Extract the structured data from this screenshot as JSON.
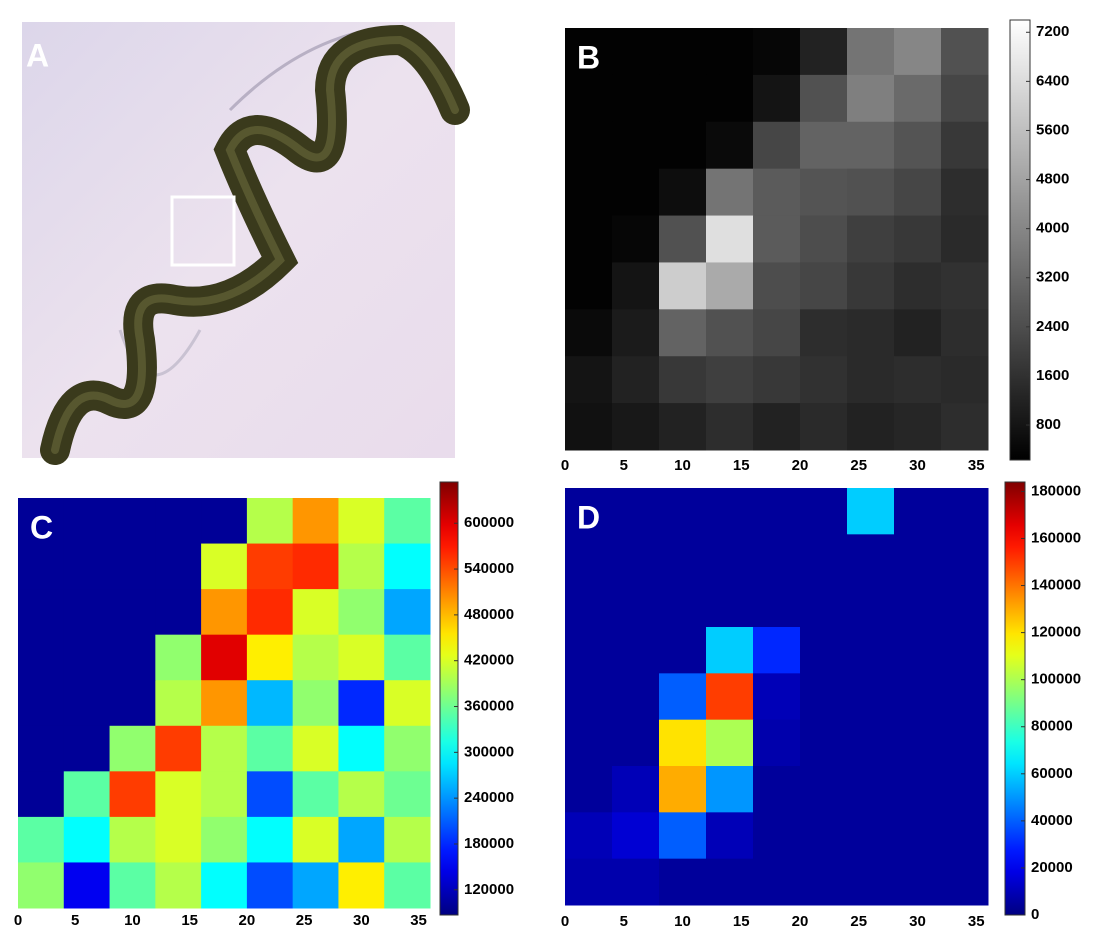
{
  "chart_data": [
    {
      "type": "image",
      "label": "A"
    },
    {
      "type": "heatmap",
      "label": "B",
      "colormap": "gray",
      "xlim": [
        0,
        36
      ],
      "xticks": [
        0,
        5,
        10,
        15,
        20,
        25,
        30,
        35
      ],
      "zlim": [
        230,
        7400
      ],
      "zticks": [
        800,
        1600,
        2400,
        3200,
        4000,
        4800,
        5600,
        6400,
        7200
      ],
      "values": [
        [
          300,
          300,
          300,
          300,
          400,
          1200,
          3500,
          4000,
          2500
        ],
        [
          300,
          300,
          300,
          300,
          800,
          2500,
          3800,
          3200,
          2200
        ],
        [
          300,
          300,
          300,
          500,
          2200,
          3000,
          3000,
          2600,
          1800
        ],
        [
          300,
          300,
          600,
          3500,
          2800,
          2600,
          2500,
          2200,
          1500
        ],
        [
          300,
          400,
          2500,
          6500,
          2800,
          2400,
          2000,
          1800,
          1400
        ],
        [
          300,
          800,
          6000,
          5000,
          2400,
          2200,
          1800,
          1500,
          1600
        ],
        [
          500,
          1000,
          3000,
          2500,
          2200,
          1500,
          1400,
          1200,
          1500
        ],
        [
          800,
          1200,
          1800,
          2000,
          1800,
          1600,
          1400,
          1500,
          1400
        ],
        [
          700,
          900,
          1200,
          1500,
          1200,
          1400,
          1200,
          1300,
          1500
        ]
      ]
    },
    {
      "type": "heatmap",
      "label": "C",
      "colormap": "jet",
      "xlim": [
        0,
        36
      ],
      "xticks": [
        0,
        5,
        10,
        15,
        20,
        25,
        30,
        35
      ],
      "zlim": [
        87000,
        654000
      ],
      "zticks": [
        120000,
        180000,
        240000,
        300000,
        360000,
        420000,
        480000,
        540000,
        600000
      ],
      "values": [
        [
          100000,
          100000,
          100000,
          100000,
          100000,
          400000,
          500000,
          420000,
          350000
        ],
        [
          100000,
          100000,
          100000,
          100000,
          420000,
          550000,
          560000,
          400000,
          300000
        ],
        [
          100000,
          100000,
          100000,
          100000,
          500000,
          560000,
          420000,
          380000,
          250000
        ],
        [
          100000,
          100000,
          100000,
          380000,
          600000,
          450000,
          400000,
          420000,
          350000
        ],
        [
          100000,
          100000,
          100000,
          400000,
          500000,
          260000,
          380000,
          180000,
          420000
        ],
        [
          100000,
          100000,
          380000,
          550000,
          400000,
          350000,
          420000,
          300000,
          380000
        ],
        [
          100000,
          350000,
          550000,
          420000,
          400000,
          200000,
          350000,
          400000,
          360000
        ],
        [
          350000,
          300000,
          400000,
          420000,
          380000,
          300000,
          420000,
          250000,
          400000
        ],
        [
          380000,
          150000,
          350000,
          400000,
          300000,
          200000,
          250000,
          450000,
          350000
        ]
      ]
    },
    {
      "type": "heatmap",
      "label": "D",
      "colormap": "jet",
      "xlim": [
        0,
        36
      ],
      "xticks": [
        0,
        5,
        10,
        15,
        20,
        25,
        30,
        35
      ],
      "zlim": [
        0,
        184000
      ],
      "zticks": [
        0,
        20000,
        40000,
        60000,
        80000,
        100000,
        120000,
        140000,
        160000,
        180000
      ],
      "values": [
        [
          5000,
          5000,
          5000,
          5000,
          5000,
          5000,
          60000,
          5000,
          5000
        ],
        [
          5000,
          5000,
          5000,
          5000,
          5000,
          5000,
          5000,
          5000,
          5000
        ],
        [
          5000,
          5000,
          5000,
          5000,
          5000,
          5000,
          5000,
          5000,
          5000
        ],
        [
          5000,
          5000,
          5000,
          60000,
          30000,
          5000,
          5000,
          5000,
          5000
        ],
        [
          5000,
          5000,
          40000,
          150000,
          10000,
          5000,
          5000,
          5000,
          5000
        ],
        [
          5000,
          5000,
          120000,
          100000,
          8000,
          5000,
          5000,
          5000,
          5000
        ],
        [
          5000,
          10000,
          130000,
          50000,
          5000,
          5000,
          5000,
          5000,
          5000
        ],
        [
          10000,
          15000,
          40000,
          10000,
          5000,
          5000,
          5000,
          5000,
          5000
        ],
        [
          8000,
          8000,
          5000,
          5000,
          5000,
          5000,
          5000,
          5000,
          5000
        ]
      ]
    }
  ]
}
